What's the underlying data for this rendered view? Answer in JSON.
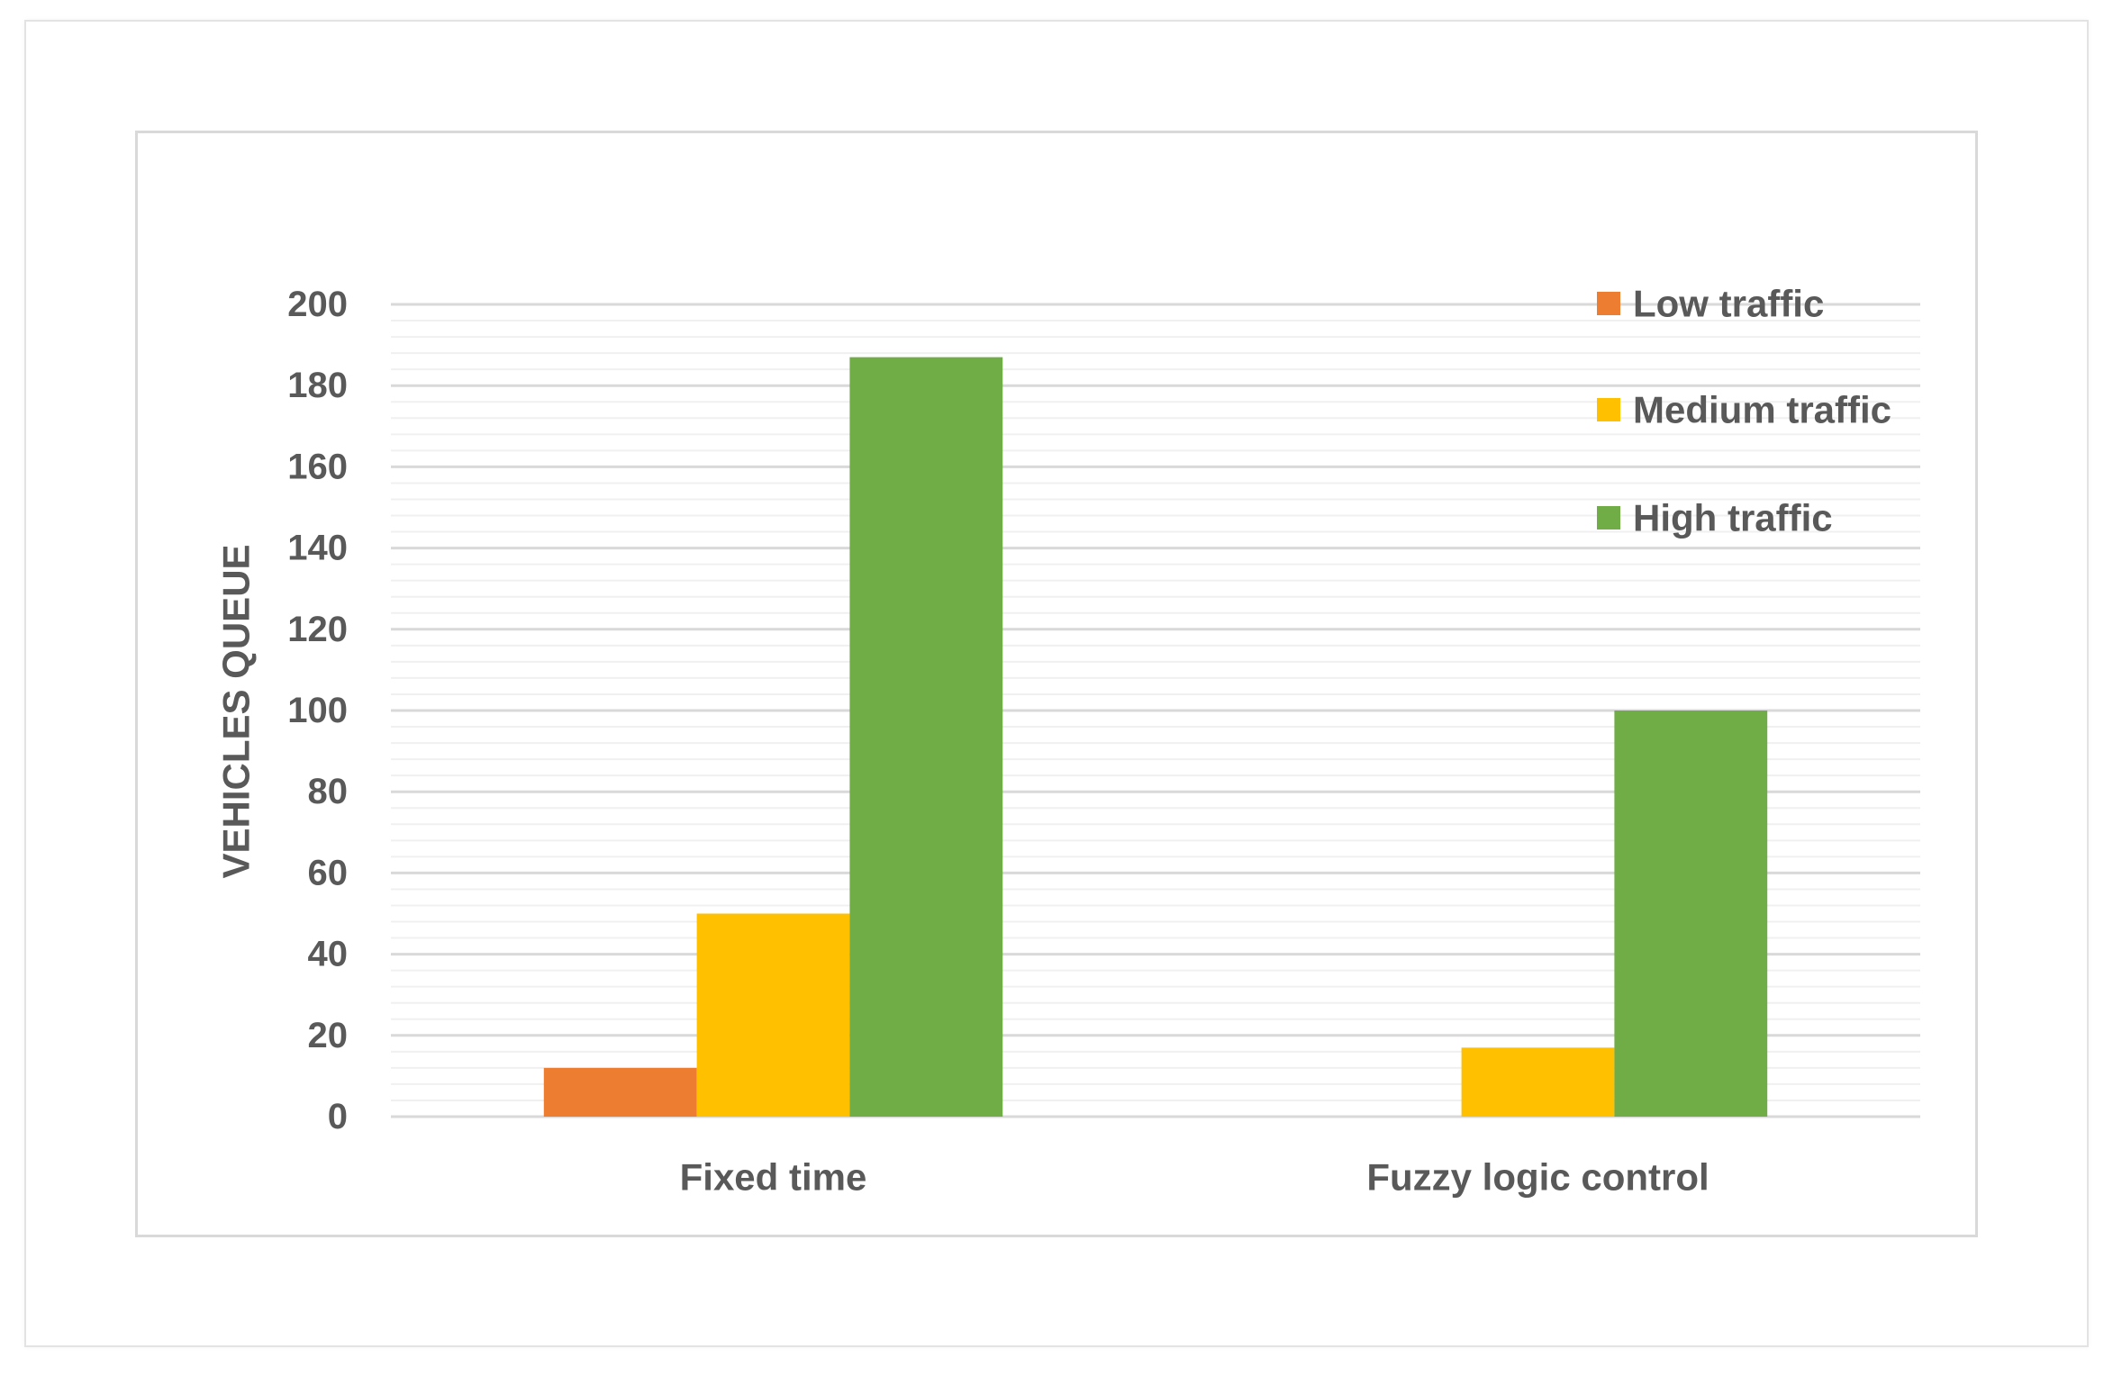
{
  "chart_data": {
    "type": "bar",
    "categories": [
      "Fixed time",
      "Fuzzy logic control"
    ],
    "series": [
      {
        "name": "Low traffic",
        "values": [
          12,
          0
        ],
        "color": "#ED7D31"
      },
      {
        "name": "Medium traffic",
        "values": [
          50,
          17
        ],
        "color": "#FFC000"
      },
      {
        "name": "High traffic",
        "values": [
          187,
          100
        ],
        "color": "#70AD47"
      }
    ],
    "xlabel": "",
    "ylabel": "VEHICLES QUEUE",
    "ylim": [
      0,
      200
    ],
    "yticks": [
      0,
      20,
      40,
      60,
      80,
      100,
      120,
      140,
      160,
      180,
      200
    ],
    "grid": true,
    "legend_position": "top-right"
  },
  "colors": {
    "text": "#595959",
    "gridline_major": "#D9D9D9",
    "gridline_minor": "#F0F0F0",
    "frame_border": "#D9D9D9"
  }
}
